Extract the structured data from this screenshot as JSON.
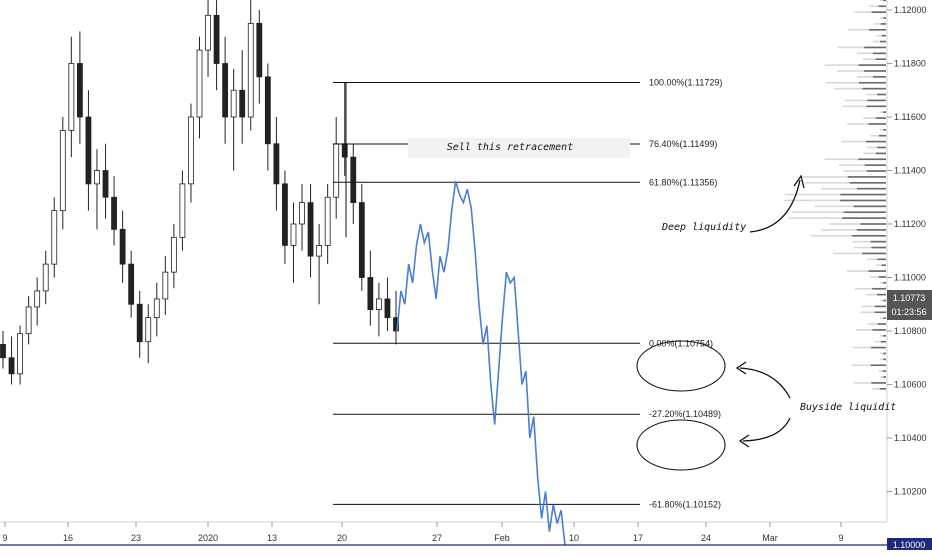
{
  "chart_data": {
    "type": "candlestick",
    "x_ticks": [
      "9",
      "16",
      "23",
      "2020",
      "13",
      "20",
      "27",
      "Feb",
      "10",
      "17",
      "24",
      "Mar",
      "9"
    ],
    "y_ticks": [
      "1.12000",
      "1.11800",
      "1.11600",
      "1.11400",
      "1.11200",
      "1.11000",
      "1.10800",
      "1.10600",
      "1.10400",
      "1.10200"
    ],
    "ylim": [
      1.0975,
      1.1205
    ],
    "current_price": "1.10773",
    "countdown": "01:23:56",
    "level_price": "1.10000",
    "fib_levels": [
      {
        "label": "100.00%(1.11729)",
        "price": 1.11729
      },
      {
        "label": "76.40%(1.11499)",
        "price": 1.11499
      },
      {
        "label": "61.80%(1.11356)",
        "price": 1.11356
      },
      {
        "label": "0.00%(1.10754)",
        "price": 1.10754
      },
      {
        "label": "-27.20%(1.10489)",
        "price": 1.10489
      },
      {
        "label": "-61.80%(1.10152)",
        "price": 1.10152
      }
    ],
    "candles": [
      [
        1.1075,
        1.108,
        1.1066,
        1.107
      ],
      [
        1.107,
        1.1078,
        1.106,
        1.1064
      ],
      [
        1.1064,
        1.1082,
        1.106,
        1.1079
      ],
      [
        1.1079,
        1.1093,
        1.1075,
        1.1089
      ],
      [
        1.1089,
        1.11,
        1.1082,
        1.1095
      ],
      [
        1.1095,
        1.111,
        1.109,
        1.1105
      ],
      [
        1.1105,
        1.113,
        1.11,
        1.1125
      ],
      [
        1.1125,
        1.116,
        1.1118,
        1.1155
      ],
      [
        1.1155,
        1.119,
        1.1145,
        1.118
      ],
      [
        1.118,
        1.1192,
        1.115,
        1.116
      ],
      [
        1.116,
        1.117,
        1.1125,
        1.1135
      ],
      [
        1.1135,
        1.1148,
        1.1118,
        1.114
      ],
      [
        1.114,
        1.115,
        1.1122,
        1.113
      ],
      [
        1.113,
        1.1138,
        1.1112,
        1.1118
      ],
      [
        1.1118,
        1.1125,
        1.1098,
        1.1105
      ],
      [
        1.1105,
        1.111,
        1.1085,
        1.109
      ],
      [
        1.109,
        1.1095,
        1.107,
        1.1076
      ],
      [
        1.1076,
        1.109,
        1.1068,
        1.1085
      ],
      [
        1.1085,
        1.1098,
        1.1078,
        1.1092
      ],
      [
        1.1092,
        1.1108,
        1.1086,
        1.1102
      ],
      [
        1.1102,
        1.112,
        1.1096,
        1.1115
      ],
      [
        1.1115,
        1.114,
        1.111,
        1.1135
      ],
      [
        1.1135,
        1.1165,
        1.1128,
        1.116
      ],
      [
        1.116,
        1.119,
        1.1152,
        1.1185
      ],
      [
        1.1185,
        1.1205,
        1.1175,
        1.1198
      ],
      [
        1.1198,
        1.1205,
        1.117,
        1.118
      ],
      [
        1.118,
        1.119,
        1.115,
        1.116
      ],
      [
        1.116,
        1.1178,
        1.114,
        1.117
      ],
      [
        1.117,
        1.1185,
        1.115,
        1.116
      ],
      [
        1.116,
        1.1205,
        1.1155,
        1.1195
      ],
      [
        1.1195,
        1.12,
        1.1165,
        1.1175
      ],
      [
        1.1175,
        1.118,
        1.114,
        1.115
      ],
      [
        1.115,
        1.116,
        1.1125,
        1.1135
      ],
      [
        1.1135,
        1.114,
        1.1105,
        1.1112
      ],
      [
        1.1112,
        1.1128,
        1.1098,
        1.112
      ],
      [
        1.112,
        1.1135,
        1.111,
        1.1128
      ],
      [
        1.1128,
        1.1135,
        1.11,
        1.1108
      ],
      [
        1.1108,
        1.112,
        1.109,
        1.1112
      ],
      [
        1.1112,
        1.1135,
        1.1105,
        1.113
      ],
      [
        1.113,
        1.116,
        1.1122,
        1.115
      ],
      [
        1.115,
        1.1173,
        1.1138,
        1.1145
      ],
      [
        1.1145,
        1.115,
        1.112,
        1.1128
      ],
      [
        1.1128,
        1.1135,
        1.1095,
        1.11
      ],
      [
        1.11,
        1.111,
        1.1082,
        1.1088
      ],
      [
        1.1088,
        1.1098,
        1.1078,
        1.1092
      ],
      [
        1.1092,
        1.11,
        1.108,
        1.1085
      ],
      [
        1.1085,
        1.1095,
        1.1075,
        1.108
      ]
    ],
    "projection": [
      1.108,
      1.1095,
      1.109,
      1.1105,
      1.1098,
      1.1112,
      1.112,
      1.1113,
      1.1117,
      1.1103,
      1.1092,
      1.1108,
      1.1102,
      1.111,
      1.1125,
      1.1136,
      1.1131,
      1.1128,
      1.1133,
      1.1126,
      1.111,
      1.109,
      1.1075,
      1.1082,
      1.106,
      1.1045,
      1.1065,
      1.1085,
      1.1102,
      1.1098,
      1.11,
      1.108,
      1.106,
      1.1065,
      1.104,
      1.1048,
      1.1025,
      1.101,
      1.102,
      1.1005,
      1.1015,
      1.1008,
      1.1013,
      1.1
    ],
    "annotations": {
      "retracement": "Sell this retracement",
      "deep_liquidity": "Deep liquidity",
      "buyside_liquidity": "Buyside liquidit"
    }
  }
}
